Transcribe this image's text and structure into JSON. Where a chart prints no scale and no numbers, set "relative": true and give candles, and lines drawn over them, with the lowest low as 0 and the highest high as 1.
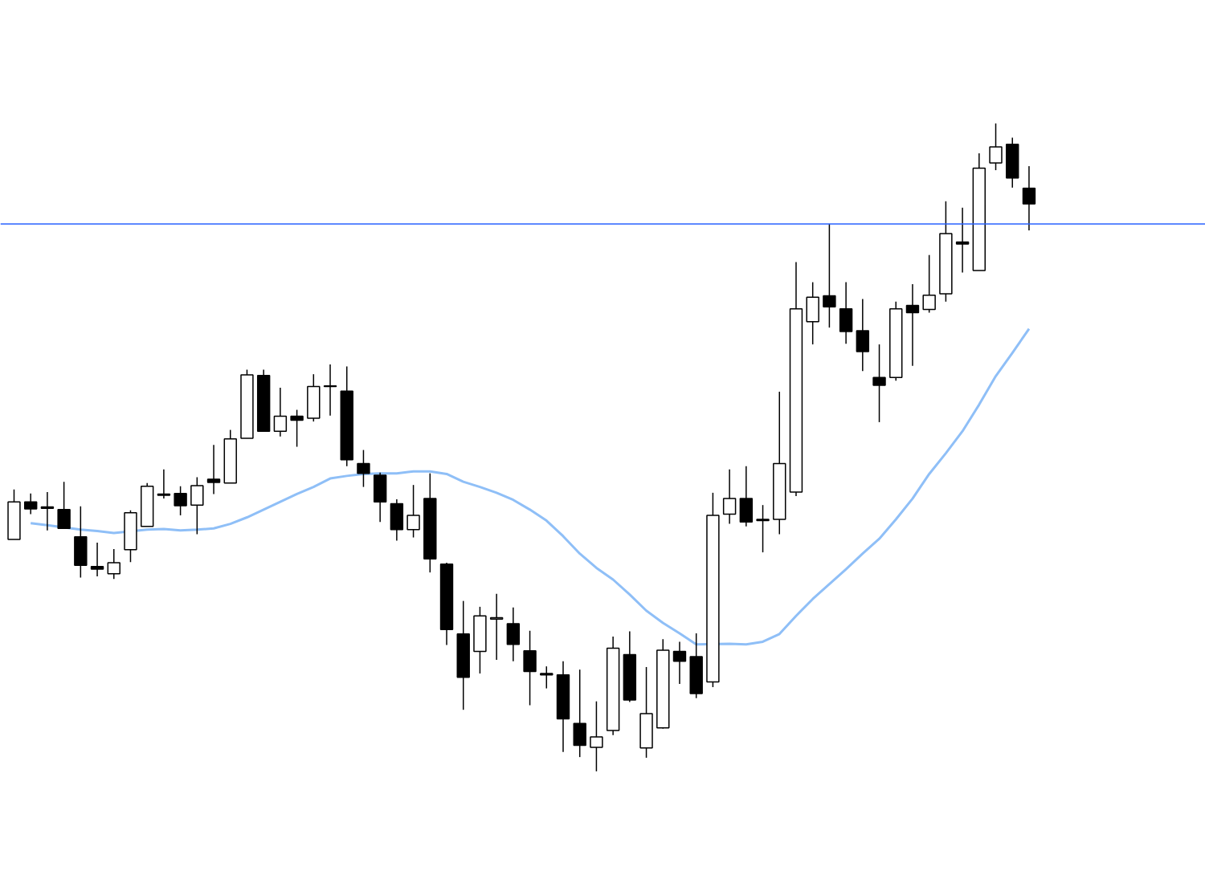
{
  "chart_data": {
    "type": "candlestick",
    "relative": true,
    "categories": [
      null,
      null,
      null,
      null,
      null,
      null,
      null,
      null,
      null,
      null,
      null,
      null,
      null,
      null,
      null,
      null,
      null,
      null,
      null,
      null,
      null,
      null,
      null,
      null,
      null,
      null,
      null,
      null,
      null,
      null,
      null,
      null,
      null,
      null,
      null,
      null,
      null,
      null,
      null,
      null,
      null,
      null,
      null,
      null,
      null,
      null,
      null,
      null,
      null,
      null,
      null,
      null,
      null,
      null,
      null,
      null,
      null,
      null,
      null,
      null,
      null,
      null
    ],
    "ohlc": [
      [
        0.358,
        0.435,
        0.358,
        0.416
      ],
      [
        0.416,
        0.429,
        0.397,
        0.405
      ],
      [
        0.408,
        0.431,
        0.372,
        0.406
      ],
      [
        0.404,
        0.447,
        0.374,
        0.375
      ],
      [
        0.362,
        0.409,
        0.299,
        0.318
      ],
      [
        0.316,
        0.353,
        0.301,
        0.312
      ],
      [
        0.305,
        0.343,
        0.297,
        0.322
      ],
      [
        0.342,
        0.403,
        0.323,
        0.399
      ],
      [
        0.378,
        0.445,
        0.378,
        0.44
      ],
      [
        0.426,
        0.466,
        0.421,
        0.428
      ],
      [
        0.429,
        0.44,
        0.395,
        0.41
      ],
      [
        0.411,
        0.454,
        0.366,
        0.441
      ],
      [
        0.451,
        0.504,
        0.428,
        0.446
      ],
      [
        0.445,
        0.527,
        0.445,
        0.513
      ],
      [
        0.514,
        0.62,
        0.514,
        0.612
      ],
      [
        0.611,
        0.62,
        0.525,
        0.525
      ],
      [
        0.525,
        0.592,
        0.517,
        0.548
      ],
      [
        0.548,
        0.558,
        0.501,
        0.542
      ],
      [
        0.545,
        0.613,
        0.54,
        0.594
      ],
      [
        0.594,
        0.628,
        0.549,
        0.595
      ],
      [
        0.587,
        0.625,
        0.471,
        0.481
      ],
      [
        0.475,
        0.496,
        0.439,
        0.46
      ],
      [
        0.457,
        0.461,
        0.385,
        0.416
      ],
      [
        0.413,
        0.42,
        0.356,
        0.373
      ],
      [
        0.373,
        0.442,
        0.361,
        0.395
      ],
      [
        0.421,
        0.46,
        0.307,
        0.328
      ],
      [
        0.32,
        0.322,
        0.195,
        0.219
      ],
      [
        0.212,
        0.263,
        0.095,
        0.145
      ],
      [
        0.185,
        0.254,
        0.151,
        0.24
      ],
      [
        0.235,
        0.274,
        0.172,
        0.237
      ],
      [
        0.228,
        0.253,
        0.17,
        0.196
      ],
      [
        0.186,
        0.217,
        0.102,
        0.154
      ],
      [
        0.151,
        0.162,
        0.128,
        0.149
      ],
      [
        0.149,
        0.17,
        0.03,
        0.081
      ],
      [
        0.074,
        0.157,
        0.022,
        0.04
      ],
      [
        0.037,
        0.108,
        0,
        0.053
      ],
      [
        0.063,
        0.208,
        0.056,
        0.19
      ],
      [
        0.18,
        0.216,
        0.107,
        0.11
      ],
      [
        0.036,
        0.161,
        0.021,
        0.089
      ],
      [
        0.067,
        0.204,
        0.066,
        0.187
      ],
      [
        0.185,
        0.2,
        0.135,
        0.17
      ],
      [
        0.177,
        0.213,
        0.113,
        0.12
      ],
      [
        0.138,
        0.43,
        0.13,
        0.395
      ],
      [
        0.397,
        0.466,
        0.382,
        0.421
      ],
      [
        0.421,
        0.471,
        0.378,
        0.385
      ],
      [
        0.389,
        0.411,
        0.338,
        0.387
      ],
      [
        0.389,
        0.586,
        0.366,
        0.475
      ],
      [
        0.431,
        0.786,
        0.425,
        0.714
      ],
      [
        0.694,
        0.755,
        0.659,
        0.732
      ],
      [
        0.734,
        0.845,
        0.685,
        0.717
      ],
      [
        0.714,
        0.755,
        0.66,
        0.679
      ],
      [
        0.68,
        0.729,
        0.618,
        0.648
      ],
      [
        0.608,
        0.659,
        0.539,
        0.596
      ],
      [
        0.608,
        0.725,
        0.603,
        0.714
      ],
      [
        0.719,
        0.752,
        0.626,
        0.708
      ],
      [
        0.713,
        0.797,
        0.708,
        0.735
      ],
      [
        0.737,
        0.88,
        0.725,
        0.83
      ],
      [
        0.817,
        0.87,
        0.77,
        0.814
      ],
      [
        0.773,
        0.954,
        0.773,
        0.931
      ],
      [
        0.939,
        1,
        0.928,
        0.964
      ],
      [
        0.968,
        0.978,
        0.901,
        0.916
      ],
      [
        0.9,
        0.934,
        0.835,
        0.876
      ]
    ],
    "series": [
      {
        "type": "line",
        "color": "#8fbff7",
        "values": [
          null,
          0.383,
          0.38,
          null,
          0.373,
          0.371,
          0.368,
          null,
          0.373,
          0.374,
          0.372,
          0.373,
          0.375,
          0.382,
          0.392,
          0.404,
          0.416,
          0.428,
          0.439,
          0.452,
          0.456,
          0.459,
          0.46,
          0.46,
          0.463,
          0.463,
          0.459,
          0.447,
          0.439,
          0.43,
          0.419,
          0.404,
          0.387,
          0.363,
          0.336,
          0.314,
          0.296,
          0.273,
          0.248,
          0.229,
          0.213,
          0.196,
          null,
          0.197,
          0.196,
          0.2,
          0.212,
          0.24,
          0.266,
          0.289,
          0.312,
          0.336,
          0.359,
          0.389,
          0.421,
          0.459,
          0.491,
          0.525,
          0.566,
          0.61,
          0.646,
          0.683
        ]
      }
    ],
    "ref_lines": [
      {
        "axis": "y",
        "value": 0.845,
        "color": "#2962ff"
      }
    ]
  }
}
